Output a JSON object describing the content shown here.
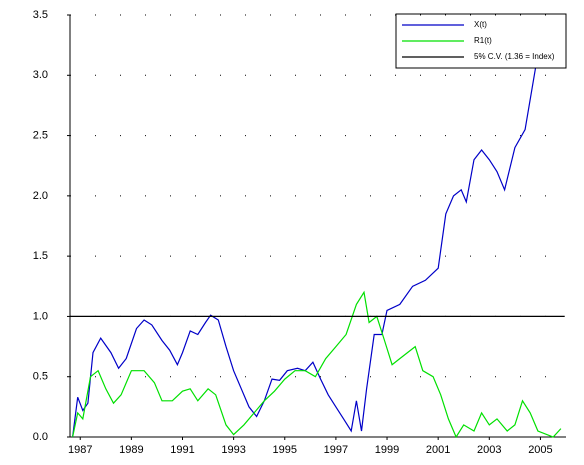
{
  "chart_data": {
    "type": "line",
    "xlim": [
      1986.6,
      2006
    ],
    "ylim": [
      0,
      3.5
    ],
    "xticks": [
      1987,
      1989,
      1991,
      1993,
      1995,
      1997,
      1999,
      2001,
      2003,
      2005
    ],
    "yticks": [
      {
        "value": 0,
        "label": "0.0"
      },
      {
        "value": 0.5,
        "label": "0.5"
      },
      {
        "value": 1,
        "label": "1.0"
      },
      {
        "value": 1.5,
        "label": "1.5"
      },
      {
        "value": 2,
        "label": "2.0"
      },
      {
        "value": 2.5,
        "label": "2.5"
      },
      {
        "value": 3,
        "label": "3.0"
      },
      {
        "value": 3.5,
        "label": "3.5"
      }
    ],
    "grid": true,
    "legend": "upper right",
    "series": [
      {
        "name": "X(t)",
        "color": "#0000c8",
        "x": [
          1986.7,
          1986.9,
          1987.1,
          1987.3,
          1987.5,
          1987.8,
          1988.2,
          1988.5,
          1988.8,
          1989.2,
          1989.5,
          1989.8,
          1990.2,
          1990.5,
          1990.8,
          1991.0,
          1991.3,
          1991.6,
          1991.9,
          1992.1,
          1992.4,
          1992.7,
          1993.0,
          1993.3,
          1993.6,
          1993.9,
          1994.2,
          1994.5,
          1994.8,
          1995.1,
          1995.5,
          1995.8,
          1996.1,
          1996.4,
          1996.7,
          1997.0,
          1997.3,
          1997.6,
          1997.8,
          1998.0,
          1998.2,
          1998.5,
          1998.8,
          1999.0,
          1999.5,
          2000.0,
          2000.5,
          2001.0,
          2001.3,
          2001.6,
          2001.9,
          2002.1,
          2002.4,
          2002.7,
          2003.0,
          2003.3,
          2003.6,
          2004.0,
          2004.4,
          2004.8,
          2005.1
        ],
        "values": [
          0.0,
          0.33,
          0.22,
          0.28,
          0.7,
          0.82,
          0.7,
          0.57,
          0.65,
          0.9,
          0.97,
          0.93,
          0.8,
          0.72,
          0.6,
          0.7,
          0.88,
          0.85,
          0.95,
          1.01,
          0.97,
          0.75,
          0.55,
          0.4,
          0.25,
          0.17,
          0.3,
          0.48,
          0.47,
          0.55,
          0.57,
          0.55,
          0.62,
          0.48,
          0.35,
          0.25,
          0.15,
          0.05,
          0.3,
          0.05,
          0.4,
          0.85,
          0.85,
          1.05,
          1.1,
          1.25,
          1.3,
          1.4,
          1.85,
          2.0,
          2.05,
          1.95,
          2.3,
          2.38,
          2.3,
          2.2,
          2.05,
          2.4,
          2.55,
          3.05,
          3.6
        ]
      },
      {
        "name": "R1(t)",
        "color": "#00e000",
        "x": [
          1986.7,
          1986.9,
          1987.1,
          1987.4,
          1987.7,
          1988.0,
          1988.3,
          1988.6,
          1989.0,
          1989.5,
          1989.9,
          1990.2,
          1990.6,
          1991.0,
          1991.3,
          1991.6,
          1992.0,
          1992.3,
          1992.7,
          1993.0,
          1993.4,
          1993.8,
          1994.2,
          1994.6,
          1995.0,
          1995.4,
          1995.8,
          1996.2,
          1996.6,
          1997.0,
          1997.4,
          1997.8,
          1998.1,
          1998.3,
          1998.6,
          1998.9,
          1999.2,
          1999.5,
          1999.8,
          2000.1,
          2000.4,
          2000.8,
          2001.1,
          2001.4,
          2001.7,
          2002.0,
          2002.4,
          2002.7,
          2003.0,
          2003.3,
          2003.7,
          2004.0,
          2004.3,
          2004.6,
          2004.9,
          2005.5,
          2005.8
        ],
        "values": [
          0.0,
          0.2,
          0.15,
          0.5,
          0.55,
          0.4,
          0.28,
          0.35,
          0.55,
          0.55,
          0.45,
          0.3,
          0.3,
          0.38,
          0.4,
          0.3,
          0.4,
          0.35,
          0.1,
          0.02,
          0.1,
          0.2,
          0.3,
          0.38,
          0.48,
          0.55,
          0.55,
          0.5,
          0.65,
          0.75,
          0.85,
          1.1,
          1.2,
          0.95,
          1.0,
          0.8,
          0.6,
          0.65,
          0.7,
          0.75,
          0.55,
          0.5,
          0.35,
          0.15,
          0.0,
          0.1,
          0.05,
          0.2,
          0.1,
          0.15,
          0.05,
          0.1,
          0.3,
          0.2,
          0.05,
          0.0,
          0.07
        ]
      },
      {
        "name": "5% C.V. (1.36 =  Index)",
        "color": "#000000",
        "x": [
          1986.6,
          2005.95
        ],
        "values": [
          1,
          1
        ]
      }
    ]
  }
}
